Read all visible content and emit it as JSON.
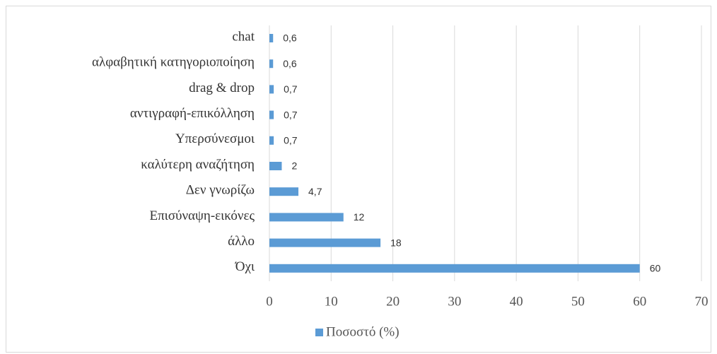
{
  "chart_data": {
    "type": "bar",
    "orientation": "horizontal",
    "categories": [
      "chat",
      "αλφαβητική κατηγοριοποίηση",
      "drag & drop",
      "αντιγραφή-επικόλληση",
      "Υπερσύνεσμοι",
      "καλύτερη αναζήτηση",
      "Δεν γνωρίζω",
      "Επισύναψη-εικόνες",
      "άλλο",
      "Όχι"
    ],
    "series": [
      {
        "name": "Ποσοστό (%)",
        "color": "#5b9bd5",
        "values": [
          0.6,
          0.6,
          0.7,
          0.7,
          0.7,
          2,
          4.7,
          12,
          18,
          60
        ],
        "value_labels": [
          "0,6",
          "0,6",
          "0,7",
          "0,7",
          "0,7",
          "2",
          "4,7",
          "12",
          "18",
          "60"
        ]
      }
    ],
    "xlim": [
      0,
      70
    ],
    "xticks": [
      0,
      10,
      20,
      30,
      40,
      50,
      60,
      70
    ],
    "grid": true,
    "legend": "bottom"
  }
}
